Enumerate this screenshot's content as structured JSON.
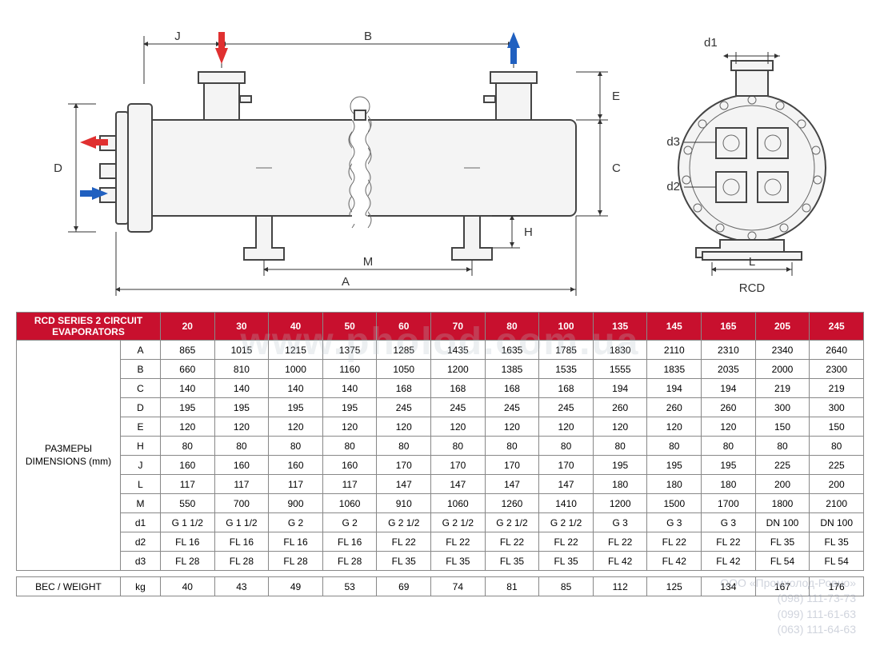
{
  "header": {
    "title": "RCD SERIES 2 CIRCUIT EVAPORATORS"
  },
  "columns": [
    "20",
    "30",
    "40",
    "50",
    "60",
    "70",
    "80",
    "100",
    "135",
    "145",
    "165",
    "205",
    "245"
  ],
  "sideLabel": "РАЗМЕРЫ\nDIMENSIONS (mm)",
  "rows": [
    {
      "k": "A",
      "v": [
        "865",
        "1015",
        "1215",
        "1375",
        "1285",
        "1435",
        "1635",
        "1785",
        "1830",
        "2110",
        "2310",
        "2340",
        "2640"
      ]
    },
    {
      "k": "B",
      "v": [
        "660",
        "810",
        "1000",
        "1160",
        "1050",
        "1200",
        "1385",
        "1535",
        "1555",
        "1835",
        "2035",
        "2000",
        "2300"
      ]
    },
    {
      "k": "C",
      "v": [
        "140",
        "140",
        "140",
        "140",
        "168",
        "168",
        "168",
        "168",
        "194",
        "194",
        "194",
        "219",
        "219"
      ]
    },
    {
      "k": "D",
      "v": [
        "195",
        "195",
        "195",
        "195",
        "245",
        "245",
        "245",
        "245",
        "260",
        "260",
        "260",
        "300",
        "300"
      ]
    },
    {
      "k": "E",
      "v": [
        "120",
        "120",
        "120",
        "120",
        "120",
        "120",
        "120",
        "120",
        "120",
        "120",
        "120",
        "150",
        "150"
      ]
    },
    {
      "k": "H",
      "v": [
        "80",
        "80",
        "80",
        "80",
        "80",
        "80",
        "80",
        "80",
        "80",
        "80",
        "80",
        "80",
        "80"
      ]
    },
    {
      "k": "J",
      "v": [
        "160",
        "160",
        "160",
        "160",
        "170",
        "170",
        "170",
        "170",
        "195",
        "195",
        "195",
        "225",
        "225"
      ]
    },
    {
      "k": "L",
      "v": [
        "117",
        "117",
        "117",
        "117",
        "147",
        "147",
        "147",
        "147",
        "180",
        "180",
        "180",
        "200",
        "200"
      ]
    },
    {
      "k": "M",
      "v": [
        "550",
        "700",
        "900",
        "1060",
        "910",
        "1060",
        "1260",
        "1410",
        "1200",
        "1500",
        "1700",
        "1800",
        "2100"
      ]
    },
    {
      "k": "d1",
      "v": [
        "G 1 1/2",
        "G 1 1/2",
        "G 2",
        "G 2",
        "G 2 1/2",
        "G 2 1/2",
        "G 2 1/2",
        "G 2 1/2",
        "G 3",
        "G 3",
        "G 3",
        "DN 100",
        "DN 100"
      ]
    },
    {
      "k": "d2",
      "v": [
        "FL 16",
        "FL 16",
        "FL 16",
        "FL 16",
        "FL 22",
        "FL 22",
        "FL 22",
        "FL 22",
        "FL 22",
        "FL 22",
        "FL 22",
        "FL 35",
        "FL 35"
      ]
    },
    {
      "k": "d3",
      "v": [
        "FL 28",
        "FL 28",
        "FL 28",
        "FL 28",
        "FL 35",
        "FL 35",
        "FL 35",
        "FL 35",
        "FL 42",
        "FL 42",
        "FL 42",
        "FL 54",
        "FL 54"
      ]
    }
  ],
  "weight": {
    "label": "ВЕС / WEIGHT",
    "unit": "kg",
    "v": [
      "40",
      "43",
      "49",
      "53",
      "69",
      "74",
      "81",
      "85",
      "112",
      "125",
      "134",
      "167",
      "176"
    ]
  },
  "diagram": {
    "labels": [
      "J",
      "B",
      "E",
      "D",
      "C",
      "H",
      "M",
      "A",
      "d1",
      "d3",
      "d2",
      "L",
      "RCD"
    ],
    "arrows": {
      "red": "#e03030",
      "blue": "#2060c0"
    }
  },
  "watermark": {
    "url": "www.pholod.com.ua",
    "company": "ООО «Промхолод-Ровно»",
    "phones": [
      "(098) 111-73-73",
      "(099) 111-61-63",
      "(063) 111-64-63"
    ]
  },
  "colors": {
    "headerBg": "#c8102e",
    "headerFg": "#ffffff",
    "border": "#888"
  }
}
